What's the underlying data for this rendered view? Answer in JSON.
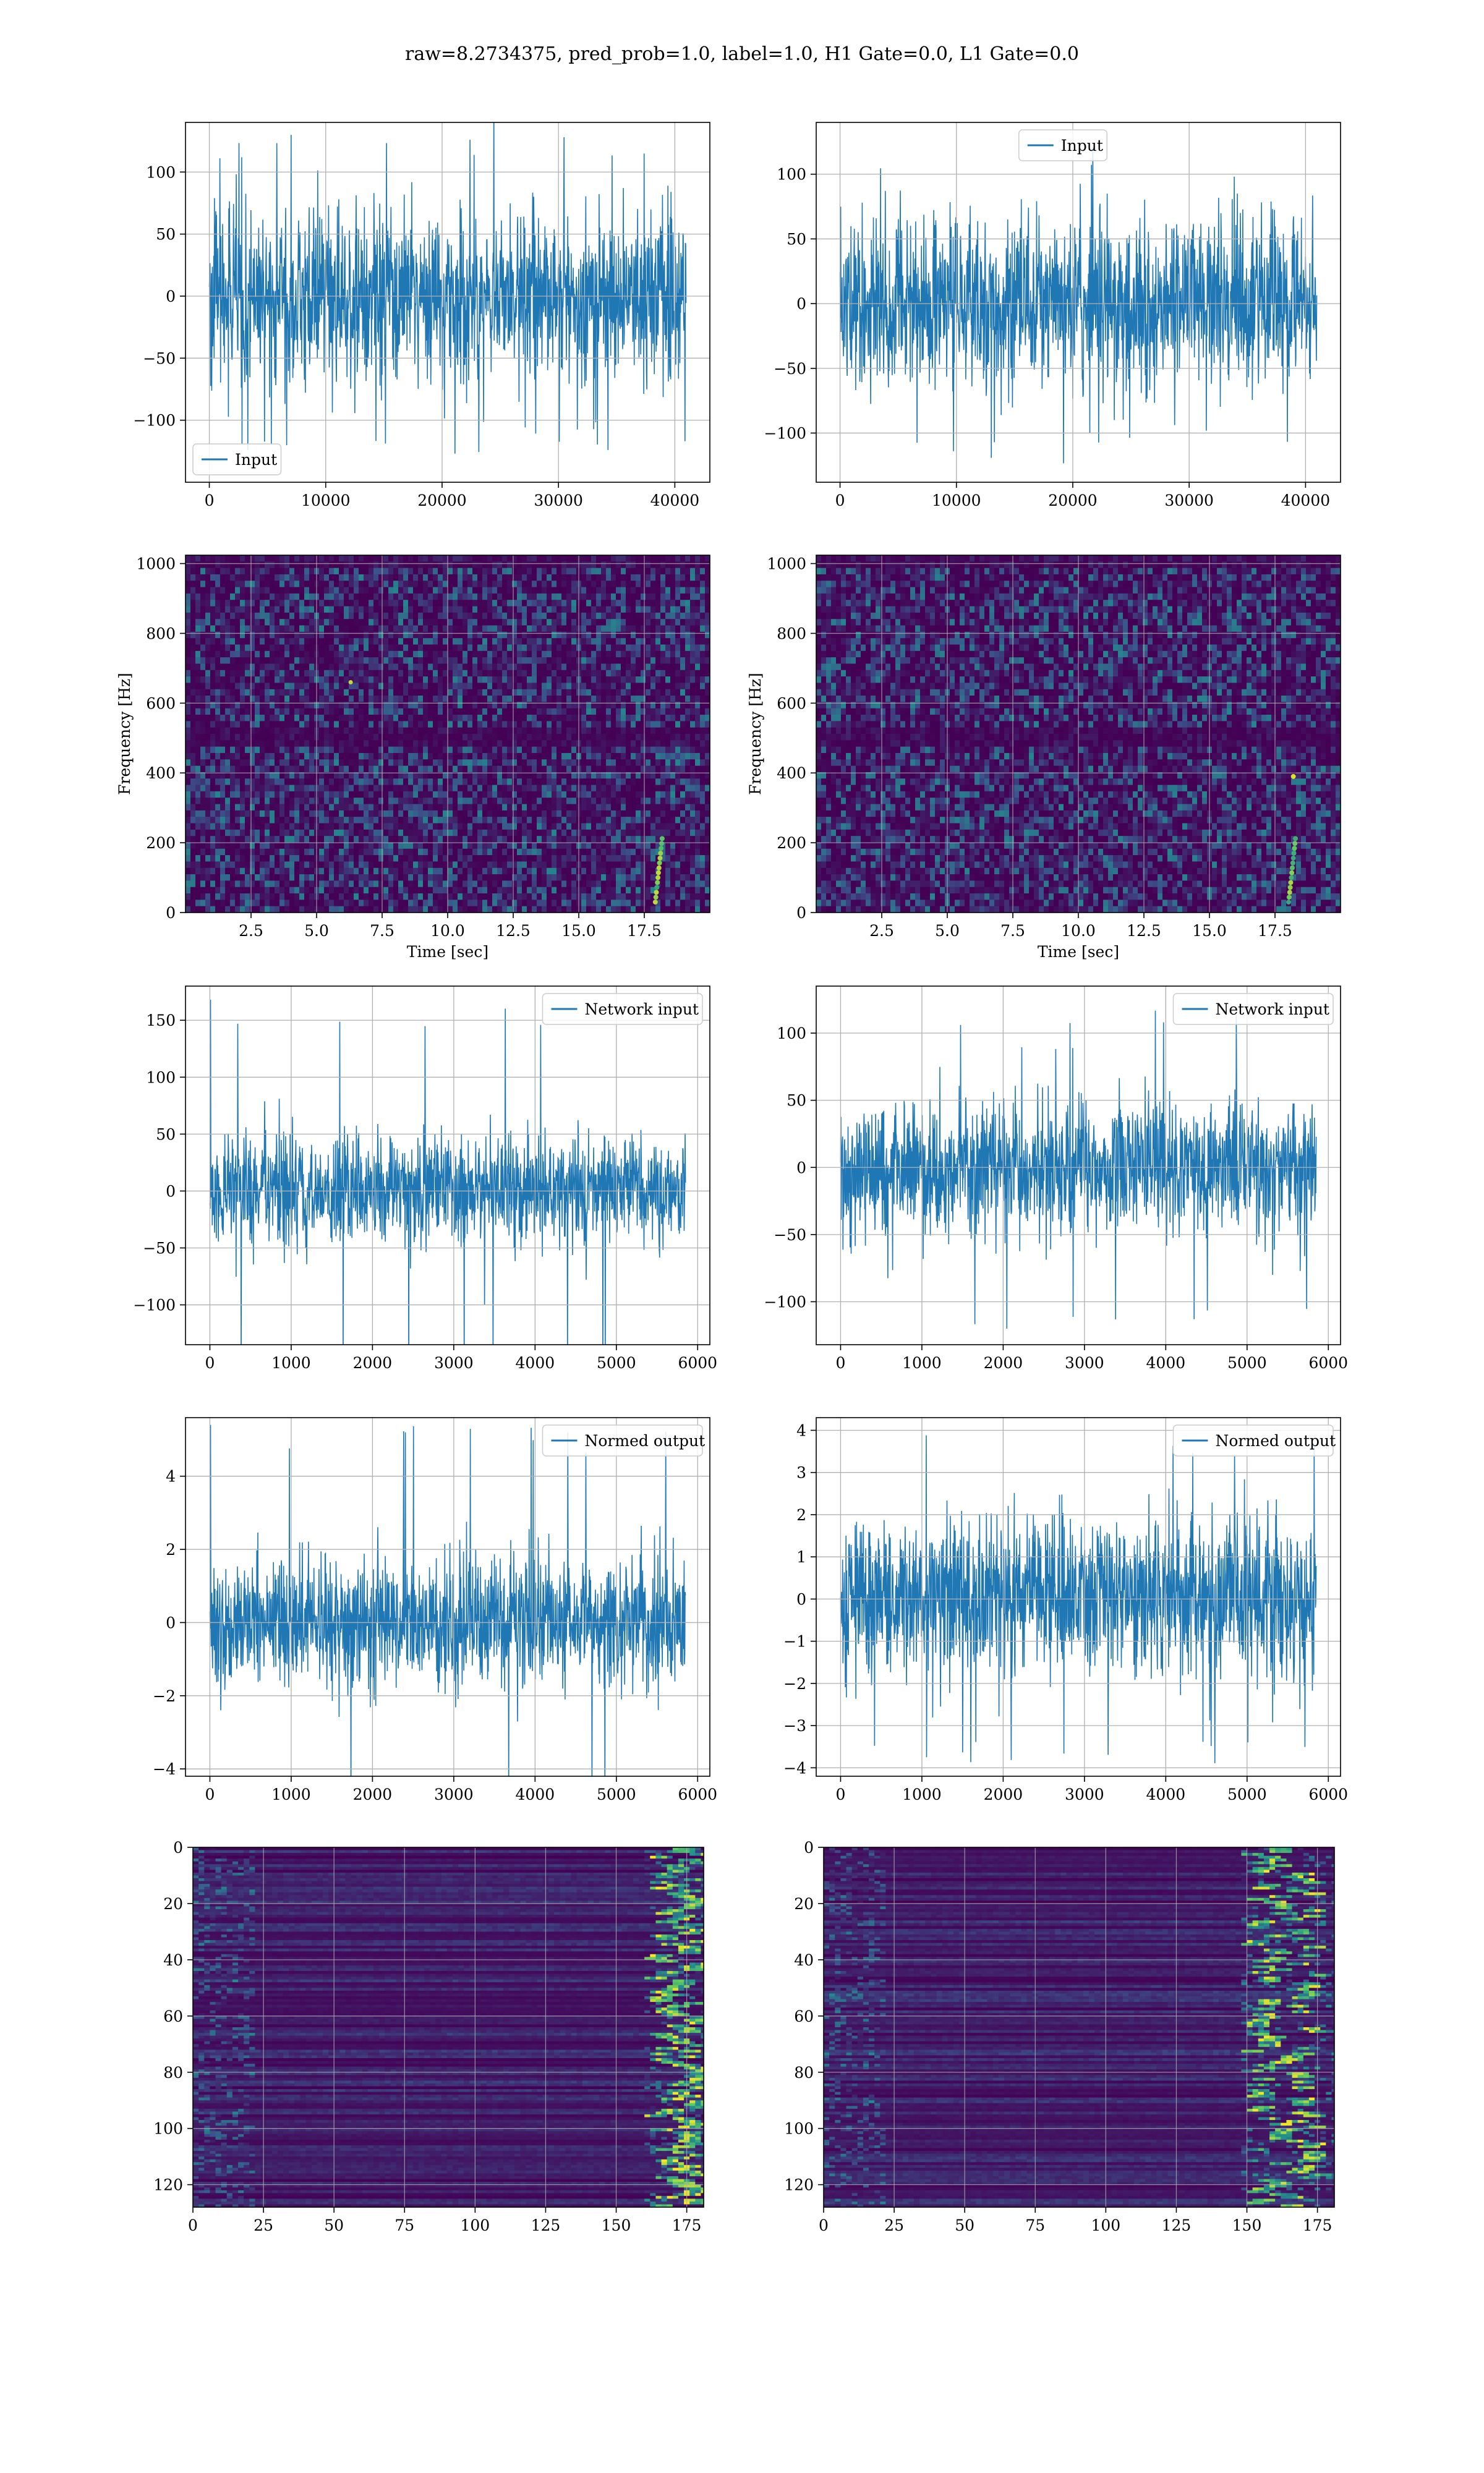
{
  "figure_title": "raw=8.2734375, pred_prob=1.0, label=1.0, H1 Gate=0.0, L1 Gate=0.0",
  "colors": {
    "series": "#1f77b4",
    "grid": "#b0b0b0",
    "viridis_low": "#440154",
    "viridis_high": "#fde725"
  },
  "chart_data": [
    {
      "id": "h1-input",
      "type": "line",
      "series": [
        {
          "name": "Input",
          "description": "dense noise, envelope approx ±65 with spikes to ±130",
          "x_range": [
            0,
            40960
          ]
        }
      ],
      "xlim": [
        -2048,
        43008
      ],
      "ylim": [
        -150,
        140
      ],
      "xticks": [
        0,
        10000,
        20000,
        30000,
        40000
      ],
      "xtick_labels": [
        "0",
        "10000",
        "20000",
        "30000",
        "40000"
      ],
      "yticks": [
        -100,
        -50,
        0,
        50,
        100
      ],
      "ytick_labels": [
        "−100",
        "−50",
        "0",
        "50",
        "100"
      ],
      "xlabel": "",
      "ylabel": "",
      "grid": true,
      "legend_loc": "lower-left",
      "amp": 34,
      "spike": 130
    },
    {
      "id": "l1-input",
      "type": "line",
      "series": [
        {
          "name": "Input",
          "description": "dense noise, envelope approx ±60 with spikes to ±125",
          "x_range": [
            0,
            40960
          ]
        }
      ],
      "xlim": [
        -2048,
        43008
      ],
      "ylim": [
        -138,
        140
      ],
      "xticks": [
        0,
        10000,
        20000,
        30000,
        40000
      ],
      "xtick_labels": [
        "0",
        "10000",
        "20000",
        "30000",
        "40000"
      ],
      "yticks": [
        -100,
        -50,
        0,
        50,
        100
      ],
      "ytick_labels": [
        "−100",
        "−50",
        "0",
        "50",
        "100"
      ],
      "xlabel": "",
      "ylabel": "",
      "grid": true,
      "legend_loc": "upper-center",
      "amp": 32,
      "spike": 125
    },
    {
      "id": "h1-spectrogram",
      "type": "heatmap",
      "colormap": "viridis",
      "xlim": [
        0,
        20
      ],
      "ylim": [
        0,
        1024
      ],
      "xticks": [
        2.5,
        5.0,
        7.5,
        10.0,
        12.5,
        15.0,
        17.5
      ],
      "xtick_labels": [
        "2.5",
        "5.0",
        "7.5",
        "10.0",
        "12.5",
        "15.0",
        "17.5"
      ],
      "yticks": [
        0,
        200,
        400,
        600,
        800,
        1000
      ],
      "ytick_labels": [
        "0",
        "200",
        "400",
        "600",
        "800",
        "1000"
      ],
      "xlabel": "Time [sec]",
      "ylabel": "Frequency [Hz]",
      "grid": true,
      "features": "noise background, dark band near 500 Hz, chirp near t=18 s below 250 Hz"
    },
    {
      "id": "l1-spectrogram",
      "type": "heatmap",
      "colormap": "viridis",
      "xlim": [
        0,
        20
      ],
      "ylim": [
        0,
        1024
      ],
      "xticks": [
        2.5,
        5.0,
        7.5,
        10.0,
        12.5,
        15.0,
        17.5
      ],
      "xtick_labels": [
        "2.5",
        "5.0",
        "7.5",
        "10.0",
        "12.5",
        "15.0",
        "17.5"
      ],
      "yticks": [
        0,
        200,
        400,
        600,
        800,
        1000
      ],
      "ytick_labels": [
        "0",
        "200",
        "400",
        "600",
        "800",
        "1000"
      ],
      "xlabel": "Time [sec]",
      "ylabel": "Frequency [Hz]",
      "grid": true,
      "features": "noise background, dark band near 500 Hz, chirp near t=18 s below 200 Hz, bright spot near 390 Hz"
    },
    {
      "id": "h1-network-input",
      "type": "line",
      "series": [
        {
          "name": "Network input",
          "description": "dense noise, envelope approx ±50, spike to 168 near start",
          "x_range": [
            0,
            5850
          ]
        }
      ],
      "xlim": [
        -300,
        6150
      ],
      "ylim": [
        -135,
        180
      ],
      "xticks": [
        0,
        1000,
        2000,
        3000,
        4000,
        5000,
        6000
      ],
      "xtick_labels": [
        "0",
        "1000",
        "2000",
        "3000",
        "4000",
        "5000",
        "6000"
      ],
      "yticks": [
        -100,
        -50,
        0,
        50,
        100,
        150
      ],
      "ytick_labels": [
        "−100",
        "−50",
        "0",
        "50",
        "100",
        "150"
      ],
      "xlabel": "",
      "ylabel": "",
      "grid": true,
      "legend_loc": "upper-right",
      "amp": 24,
      "spike": 168
    },
    {
      "id": "l1-network-input",
      "type": "line",
      "series": [
        {
          "name": "Network input",
          "description": "dense noise, envelope approx ±50, spikes to ±120",
          "x_range": [
            0,
            5850
          ]
        }
      ],
      "xlim": [
        -300,
        6150
      ],
      "ylim": [
        -132,
        135
      ],
      "xticks": [
        0,
        1000,
        2000,
        3000,
        4000,
        5000,
        6000
      ],
      "xtick_labels": [
        "0",
        "1000",
        "2000",
        "3000",
        "4000",
        "5000",
        "6000"
      ],
      "yticks": [
        -100,
        -50,
        0,
        50,
        100
      ],
      "ytick_labels": [
        "−100",
        "−50",
        "0",
        "50",
        "100"
      ],
      "xlabel": "",
      "ylabel": "",
      "grid": true,
      "legend_loc": "upper-right",
      "amp": 25,
      "spike": 122
    },
    {
      "id": "h1-normed-output",
      "type": "line",
      "series": [
        {
          "name": "Normed output",
          "description": "dense noise, envelope approx ±1.7, spike to 5.4 near start",
          "x_range": [
            0,
            5850
          ]
        }
      ],
      "xlim": [
        -300,
        6150
      ],
      "ylim": [
        -4.2,
        5.6
      ],
      "xticks": [
        0,
        1000,
        2000,
        3000,
        4000,
        5000,
        6000
      ],
      "xtick_labels": [
        "0",
        "1000",
        "2000",
        "3000",
        "4000",
        "5000",
        "6000"
      ],
      "yticks": [
        -4,
        -2,
        0,
        2,
        4
      ],
      "ytick_labels": [
        "−4",
        "−2",
        "0",
        "2",
        "4"
      ],
      "xlabel": "",
      "ylabel": "",
      "grid": true,
      "legend_loc": "upper-right",
      "amp": 0.85,
      "spike": 5.4
    },
    {
      "id": "l1-normed-output",
      "type": "line",
      "series": [
        {
          "name": "Normed output",
          "description": "dense noise, envelope approx ±2, spikes to ±3.9",
          "x_range": [
            0,
            5850
          ]
        }
      ],
      "xlim": [
        -300,
        6150
      ],
      "ylim": [
        -4.2,
        4.3
      ],
      "xticks": [
        0,
        1000,
        2000,
        3000,
        4000,
        5000,
        6000
      ],
      "xtick_labels": [
        "0",
        "1000",
        "2000",
        "3000",
        "4000",
        "5000",
        "6000"
      ],
      "yticks": [
        -4,
        -3,
        -2,
        -1,
        0,
        1,
        2,
        3,
        4
      ],
      "ytick_labels": [
        "−4",
        "−3",
        "−2",
        "−1",
        "0",
        "1",
        "2",
        "3",
        "4"
      ],
      "xlabel": "",
      "ylabel": "",
      "grid": true,
      "legend_loc": "upper-right",
      "amp": 0.95,
      "spike": 3.9
    },
    {
      "id": "h1-network-features",
      "type": "heatmap",
      "colormap": "viridis",
      "xlim": [
        0,
        181
      ],
      "ylim": [
        128,
        0
      ],
      "xticks": [
        0,
        25,
        50,
        75,
        100,
        125,
        150,
        175
      ],
      "xtick_labels": [
        "0",
        "25",
        "50",
        "75",
        "100",
        "125",
        "150",
        "175"
      ],
      "yticks": [
        0,
        20,
        40,
        60,
        80,
        100,
        120
      ],
      "ytick_labels": [
        "0",
        "20",
        "40",
        "60",
        "80",
        "100",
        "120"
      ],
      "xlabel": "",
      "ylabel": "",
      "grid": true,
      "features": "128 rows x 181 columns, mostly dark, bright activations concentrated at columns 160-180"
    },
    {
      "id": "l1-network-features",
      "type": "heatmap",
      "colormap": "viridis",
      "xlim": [
        0,
        181
      ],
      "ylim": [
        128,
        0
      ],
      "xticks": [
        0,
        25,
        50,
        75,
        100,
        125,
        150,
        175
      ],
      "xtick_labels": [
        "0",
        "25",
        "50",
        "75",
        "100",
        "125",
        "150",
        "175"
      ],
      "yticks": [
        0,
        20,
        40,
        60,
        80,
        100,
        120
      ],
      "ytick_labels": [
        "0",
        "20",
        "40",
        "60",
        "80",
        "100",
        "120"
      ],
      "xlabel": "",
      "ylabel": "",
      "grid": true,
      "features": "128 rows x 181 columns, mostly dark, bright activations concentrated at columns 150-175"
    }
  ]
}
